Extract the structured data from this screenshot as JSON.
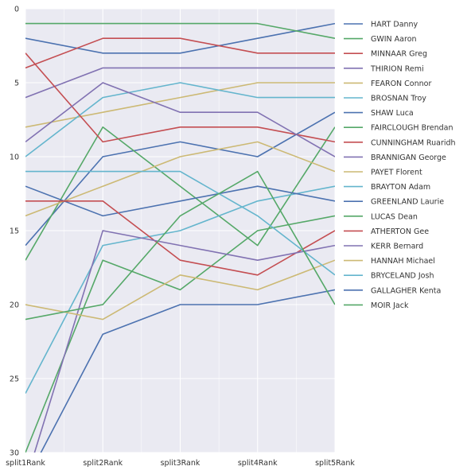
{
  "chart_data": {
    "type": "line",
    "x": [
      "split1Rank",
      "split2Rank",
      "split3Rank",
      "split4Rank",
      "split5Rank"
    ],
    "ylim": [
      30,
      0
    ],
    "yticks": [
      0,
      5,
      10,
      15,
      20,
      25,
      30
    ],
    "grid": true,
    "background": "#eaeaf2",
    "legend_position": "right, outside",
    "series": [
      {
        "name": "HART Danny",
        "color": "#4c72b0",
        "values": [
          2,
          3,
          3,
          2,
          1
        ]
      },
      {
        "name": "GWIN Aaron",
        "color": "#55a868",
        "values": [
          1,
          1,
          1,
          1,
          2
        ]
      },
      {
        "name": "MINNAAR Greg",
        "color": "#c44e52",
        "values": [
          4,
          2,
          2,
          3,
          3
        ]
      },
      {
        "name": "THIRION Remi",
        "color": "#8172b2",
        "values": [
          6,
          4,
          4,
          4,
          4
        ]
      },
      {
        "name": "FEARON Connor",
        "color": "#ccb974",
        "values": [
          8,
          7,
          6,
          5,
          5
        ]
      },
      {
        "name": "BROSNAN Troy",
        "color": "#64b5cd",
        "values": [
          10,
          6,
          5,
          6,
          6
        ]
      },
      {
        "name": "SHAW Luca",
        "color": "#4c72b0",
        "values": [
          16,
          10,
          9,
          10,
          7
        ]
      },
      {
        "name": "FAIRCLOUGH Brendan",
        "color": "#55a868",
        "values": [
          17,
          8,
          12,
          16,
          8
        ]
      },
      {
        "name": "CUNNINGHAM Ruaridh",
        "color": "#c44e52",
        "values": [
          3,
          9,
          8,
          8,
          9
        ]
      },
      {
        "name": "BRANNIGAN George",
        "color": "#8172b2",
        "values": [
          9,
          5,
          7,
          7,
          10
        ]
      },
      {
        "name": "PAYET Florent",
        "color": "#ccb974",
        "values": [
          14,
          12,
          10,
          9,
          11
        ]
      },
      {
        "name": "BRAYTON Adam",
        "color": "#64b5cd",
        "values": [
          26,
          16,
          15,
          13,
          12
        ]
      },
      {
        "name": "GREENLAND Laurie",
        "color": "#4c72b0",
        "values": [
          12,
          14,
          13,
          12,
          13
        ]
      },
      {
        "name": "LUCAS Dean",
        "color": "#55a868",
        "values": [
          30,
          17,
          19,
          15,
          14
        ]
      },
      {
        "name": "ATHERTON Gee",
        "color": "#c44e52",
        "values": [
          13,
          13,
          17,
          18,
          15
        ]
      },
      {
        "name": "KERR Bernard",
        "color": "#8172b2",
        "values": [
          32,
          15,
          16,
          17,
          16
        ]
      },
      {
        "name": "HANNAH Michael",
        "color": "#ccb974",
        "values": [
          20,
          21,
          18,
          19,
          17
        ]
      },
      {
        "name": "BRYCELAND Josh",
        "color": "#64b5cd",
        "values": [
          11,
          11,
          11,
          14,
          18
        ]
      },
      {
        "name": "GALLAGHER Kenta",
        "color": "#4c72b0",
        "values": [
          32,
          22,
          20,
          20,
          19
        ]
      },
      {
        "name": "MOIR Jack",
        "color": "#55a868",
        "values": [
          21,
          20,
          14,
          11,
          20
        ]
      }
    ]
  }
}
